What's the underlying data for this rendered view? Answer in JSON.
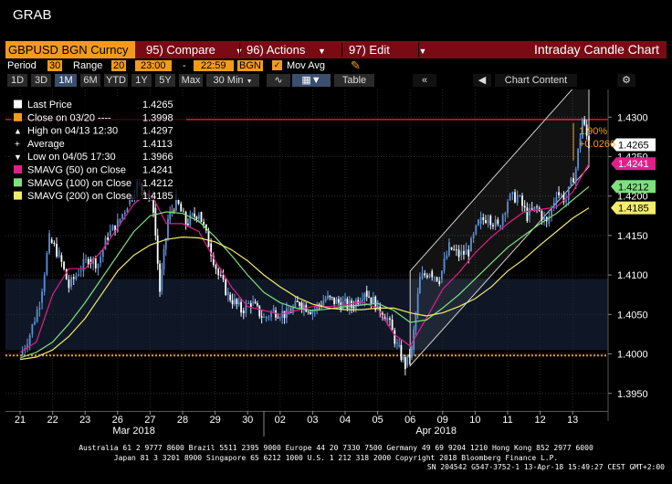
{
  "window_title": "GRAB",
  "toolbar": {
    "ticker": "GBPUSD BGN Curncy",
    "compare_num": "95)",
    "compare_label": "Compare",
    "actions_num": "96)",
    "actions_label": "Actions",
    "edit_num": "97)",
    "edit_label": "Edit",
    "chart_title": "Intraday Candle Chart"
  },
  "period_bar": {
    "period_label": "Period",
    "period_value": "30",
    "range_label": "Range",
    "range_value": "20",
    "time_start": "23:00",
    "dash": "-",
    "time_end": "22:59",
    "source": "BGN",
    "mov_avg_label": "Mov Avg"
  },
  "range_buttons": [
    "1D",
    "3D",
    "1M",
    "6M",
    "YTD",
    "1Y",
    "5Y",
    "Max"
  ],
  "interval": "30 Min",
  "table_label": "Table",
  "chart_content_label": "Chart Content",
  "legend": [
    {
      "name": "Last Price",
      "value": "1.4265",
      "color": "#ffffff"
    },
    {
      "name": "Close on 03/20 ----",
      "value": "1.3998",
      "color": "#f39a1e"
    },
    {
      "name": "High on 04/13 12:30",
      "value": "1.4297",
      "color": "#ffffff"
    },
    {
      "name": "Average",
      "value": "1.4113",
      "color": "#ffffff"
    },
    {
      "name": "Low on 04/05 17:30",
      "value": "1.3966",
      "color": "#ffffff"
    },
    {
      "name": "SMAVG (50) on Close",
      "value": "1.4241",
      "color": "#e0208a"
    },
    {
      "name": "SMAVG (100) on Close",
      "value": "1.4212",
      "color": "#7ee07e"
    },
    {
      "name": "SMAVG (200) on Close",
      "value": "1.4185",
      "color": "#f2ec6a"
    }
  ],
  "annotation": {
    "pct": "1.90%",
    "chg": "+0.0266"
  },
  "price_tags": [
    {
      "value": "1.4265",
      "color": "#ffffff",
      "text_color": "#000000"
    },
    {
      "value": "1.4241",
      "color": "#e0208a",
      "text_color": "#ffffff"
    },
    {
      "value": "1.4212",
      "color": "#7ee07e",
      "text_color": "#000000"
    },
    {
      "value": "1.4185",
      "color": "#f2ec6a",
      "text_color": "#000000"
    }
  ],
  "footer": {
    "line1": "Australia 61 2 9777 8600 Brazil 5511 2395 9000 Europe 44 20 7330 7500 Germany 49 69 9204 1210 Hong Kong 852 2977 6000",
    "line2": "Japan 81 3 3201 8900        Singapore 65 6212 1000        U.S. 1 212 318 2000                Copyright 2018 Bloomberg Finance L.P.",
    "line3": "SN 204542 G547-3752-1 13-Apr-18 15:49:27 CEST GMT+2:00"
  },
  "chart_data": {
    "type": "candlestick",
    "title": "Intraday Candle Chart",
    "instrument": "GBPUSD BGN Curncy",
    "interval": "30 Min",
    "x_ticks": [
      "21",
      "22",
      "23",
      "26",
      "27",
      "28",
      "29",
      "30",
      "02",
      "03",
      "04",
      "05",
      "06",
      "09",
      "10",
      "11",
      "12",
      "13"
    ],
    "x_groups": [
      "Mar 2018",
      "Apr 2018"
    ],
    "y_ticks": [
      1.395,
      1.4,
      1.405,
      1.41,
      1.415,
      1.42,
      1.425,
      1.43
    ],
    "y_tick_labels": [
      "1.3950",
      "1.4000",
      "1.4050",
      "1.4100",
      "1.4150",
      "1.4200",
      "1.4250",
      "1.4300"
    ],
    "ylim": [
      1.3915,
      1.4335
    ],
    "reference_lines": [
      {
        "name": "High",
        "value": 1.4297,
        "color": "#d02030",
        "style": "solid"
      },
      {
        "name": "Close on 03/20",
        "value": 1.3998,
        "color": "#f39a1e",
        "style": "dotted"
      }
    ],
    "series": [
      {
        "name": "Price",
        "points": [
          [
            0,
            1.3998
          ],
          [
            0.3,
            1.4025
          ],
          [
            0.6,
            1.4065
          ],
          [
            0.9,
            1.4145
          ],
          [
            1.2,
            1.4125
          ],
          [
            1.5,
            1.4085
          ],
          [
            1.8,
            1.4105
          ],
          [
            2.1,
            1.412
          ],
          [
            2.4,
            1.4115
          ],
          [
            2.7,
            1.415
          ],
          [
            3.0,
            1.4165
          ],
          [
            3.3,
            1.419
          ],
          [
            3.6,
            1.4215
          ],
          [
            3.9,
            1.4205
          ],
          [
            4.1,
            1.4185
          ],
          [
            4.3,
            1.408
          ],
          [
            4.55,
            1.417
          ],
          [
            4.8,
            1.4195
          ],
          [
            5.1,
            1.4165
          ],
          [
            5.5,
            1.418
          ],
          [
            5.8,
            1.414
          ],
          [
            6.1,
            1.41
          ],
          [
            6.4,
            1.4075
          ],
          [
            6.8,
            1.4055
          ],
          [
            7.1,
            1.4065
          ],
          [
            7.5,
            1.4045
          ],
          [
            7.8,
            1.4055
          ],
          [
            8.2,
            1.405
          ],
          [
            8.6,
            1.4065
          ],
          [
            9.0,
            1.4055
          ],
          [
            9.4,
            1.407
          ],
          [
            9.8,
            1.4065
          ],
          [
            10.2,
            1.406
          ],
          [
            10.6,
            1.408
          ],
          [
            11.0,
            1.406
          ],
          [
            11.3,
            1.4045
          ],
          [
            11.6,
            1.401
          ],
          [
            11.85,
            1.3985
          ],
          [
            12.05,
            1.4005
          ],
          [
            12.3,
            1.4095
          ],
          [
            12.6,
            1.4105
          ],
          [
            12.9,
            1.4095
          ],
          [
            13.2,
            1.4135
          ],
          [
            13.5,
            1.4125
          ],
          [
            13.8,
            1.413
          ],
          [
            14.1,
            1.4165
          ],
          [
            14.4,
            1.4175
          ],
          [
            14.7,
            1.416
          ],
          [
            15.0,
            1.4195
          ],
          [
            15.3,
            1.42
          ],
          [
            15.6,
            1.4175
          ],
          [
            15.9,
            1.4185
          ],
          [
            16.2,
            1.4165
          ],
          [
            16.5,
            1.4205
          ],
          [
            16.8,
            1.4195
          ],
          [
            17.1,
            1.4235
          ],
          [
            17.3,
            1.4297
          ],
          [
            17.5,
            1.4265
          ]
        ]
      },
      {
        "name": "SMAVG (50) on Close",
        "color": "#e0208a",
        "points": [
          [
            0,
            1.4002
          ],
          [
            0.5,
            1.4015
          ],
          [
            1.0,
            1.4075
          ],
          [
            1.5,
            1.4108
          ],
          [
            2.0,
            1.4108
          ],
          [
            2.5,
            1.413
          ],
          [
            3.0,
            1.416
          ],
          [
            3.5,
            1.419
          ],
          [
            4.0,
            1.4205
          ],
          [
            4.5,
            1.4165
          ],
          [
            5.0,
            1.4165
          ],
          [
            5.5,
            1.4155
          ],
          [
            6.0,
            1.4118
          ],
          [
            6.5,
            1.4085
          ],
          [
            7.0,
            1.406
          ],
          [
            7.5,
            1.4055
          ],
          [
            8.0,
            1.405
          ],
          [
            8.5,
            1.4055
          ],
          [
            9.0,
            1.406
          ],
          [
            9.5,
            1.406
          ],
          [
            10.0,
            1.4062
          ],
          [
            10.5,
            1.4066
          ],
          [
            11.0,
            1.4058
          ],
          [
            11.5,
            1.4025
          ],
          [
            12.0,
            1.401
          ],
          [
            12.5,
            1.4045
          ],
          [
            13.0,
            1.4082
          ],
          [
            13.5,
            1.4103
          ],
          [
            14.0,
            1.4128
          ],
          [
            14.5,
            1.4148
          ],
          [
            15.0,
            1.4165
          ],
          [
            15.5,
            1.418
          ],
          [
            16.0,
            1.4183
          ],
          [
            16.5,
            1.4186
          ],
          [
            17.0,
            1.4205
          ],
          [
            17.5,
            1.4241
          ]
        ]
      },
      {
        "name": "SMAVG (100) on Close",
        "color": "#7ee07e",
        "points": [
          [
            0,
            1.3995
          ],
          [
            0.5,
            1.4002
          ],
          [
            1.0,
            1.4015
          ],
          [
            1.5,
            1.4038
          ],
          [
            2.0,
            1.4065
          ],
          [
            2.5,
            1.4095
          ],
          [
            3.0,
            1.4125
          ],
          [
            3.5,
            1.4155
          ],
          [
            4.0,
            1.4175
          ],
          [
            4.5,
            1.418
          ],
          [
            5.0,
            1.4178
          ],
          [
            5.5,
            1.4168
          ],
          [
            6.0,
            1.4148
          ],
          [
            6.5,
            1.4125
          ],
          [
            7.0,
            1.41
          ],
          [
            7.5,
            1.4078
          ],
          [
            8.0,
            1.4065
          ],
          [
            8.5,
            1.4058
          ],
          [
            9.0,
            1.4055
          ],
          [
            9.5,
            1.4057
          ],
          [
            10.0,
            1.406
          ],
          [
            10.5,
            1.4062
          ],
          [
            11.0,
            1.4064
          ],
          [
            11.5,
            1.4055
          ],
          [
            12.0,
            1.404
          ],
          [
            12.5,
            1.4043
          ],
          [
            13.0,
            1.4058
          ],
          [
            13.5,
            1.4075
          ],
          [
            14.0,
            1.4095
          ],
          [
            14.5,
            1.4115
          ],
          [
            15.0,
            1.4135
          ],
          [
            15.5,
            1.415
          ],
          [
            16.0,
            1.4165
          ],
          [
            16.5,
            1.4178
          ],
          [
            17.0,
            1.4195
          ],
          [
            17.5,
            1.4212
          ]
        ]
      },
      {
        "name": "SMAVG (200) on Close",
        "color": "#f2ec6a",
        "points": [
          [
            0,
            1.3993
          ],
          [
            0.5,
            1.3996
          ],
          [
            1.0,
            1.4005
          ],
          [
            1.5,
            1.4022
          ],
          [
            2.0,
            1.4045
          ],
          [
            2.5,
            1.4075
          ],
          [
            3.0,
            1.4105
          ],
          [
            3.5,
            1.4125
          ],
          [
            4.0,
            1.4138
          ],
          [
            4.5,
            1.4145
          ],
          [
            5.0,
            1.4148
          ],
          [
            5.5,
            1.4147
          ],
          [
            6.0,
            1.4142
          ],
          [
            6.5,
            1.4132
          ],
          [
            7.0,
            1.4118
          ],
          [
            7.5,
            1.41
          ],
          [
            8.0,
            1.4085
          ],
          [
            8.5,
            1.4072
          ],
          [
            9.0,
            1.4063
          ],
          [
            9.5,
            1.4058
          ],
          [
            10.0,
            1.4056
          ],
          [
            10.5,
            1.4056
          ],
          [
            11.0,
            1.4058
          ],
          [
            11.5,
            1.4058
          ],
          [
            12.0,
            1.4052
          ],
          [
            12.5,
            1.4048
          ],
          [
            13.0,
            1.4052
          ],
          [
            13.5,
            1.406
          ],
          [
            14.0,
            1.407
          ],
          [
            14.5,
            1.4085
          ],
          [
            15.0,
            1.4105
          ],
          [
            15.5,
            1.412
          ],
          [
            16.0,
            1.4138
          ],
          [
            16.5,
            1.4155
          ],
          [
            17.0,
            1.4172
          ],
          [
            17.5,
            1.4185
          ]
        ]
      }
    ],
    "channel": {
      "lower": [
        [
          12.0,
          1.3985
        ],
        [
          17.5,
          1.4237
        ]
      ],
      "upper": [
        [
          12.0,
          1.4105
        ],
        [
          17.5,
          1.4359
        ]
      ]
    },
    "grid": true,
    "legend_position": "top-left"
  }
}
